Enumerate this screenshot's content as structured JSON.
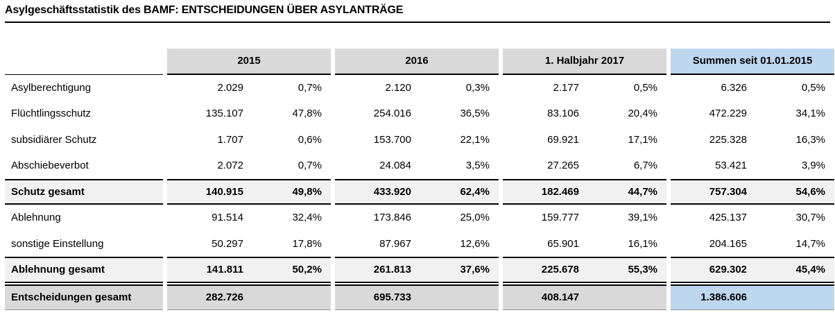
{
  "title": "Asylgeschäftsstatistik des BAMF: ENTSCHEIDUNGEN ÜBER ASYLANTRÄGE",
  "colors": {
    "header_gray": "#d9d9d9",
    "summen_blue": "#bdd7ee",
    "subtotal_gray": "#f1f1f1",
    "total_gray": "#d9d9d9",
    "border": "#000000"
  },
  "table": {
    "column_groups": [
      "2015",
      "2016",
      "1. Halbjahr 2017",
      "Summen seit 01.01.2015"
    ],
    "rows": [
      {
        "label": "Asylberechtigung",
        "cells": [
          [
            "2.029",
            "0,7%"
          ],
          [
            "2.120",
            "0,3%"
          ],
          [
            "2.177",
            "0,5%"
          ],
          [
            "6.326",
            "0,5%"
          ]
        ]
      },
      {
        "label": "Flüchtlingsschutz",
        "cells": [
          [
            "135.107",
            "47,8%"
          ],
          [
            "254.016",
            "36,5%"
          ],
          [
            "83.106",
            "20,4%"
          ],
          [
            "472.229",
            "34,1%"
          ]
        ]
      },
      {
        "label": "subsidiärer Schutz",
        "cells": [
          [
            "1.707",
            "0,6%"
          ],
          [
            "153.700",
            "22,1%"
          ],
          [
            "69.921",
            "17,1%"
          ],
          [
            "225.328",
            "16,3%"
          ]
        ]
      },
      {
        "label": "Abschiebeverbot",
        "cells": [
          [
            "2.072",
            "0,7%"
          ],
          [
            "24.084",
            "3,5%"
          ],
          [
            "27.265",
            "6,7%"
          ],
          [
            "53.421",
            "3,9%"
          ]
        ]
      },
      {
        "label": "Schutz gesamt",
        "cells": [
          [
            "140.915",
            "49,8%"
          ],
          [
            "433.920",
            "62,4%"
          ],
          [
            "182.469",
            "44,7%"
          ],
          [
            "757.304",
            "54,6%"
          ]
        ]
      },
      {
        "label": "Ablehnung",
        "cells": [
          [
            "91.514",
            "32,4%"
          ],
          [
            "173.846",
            "25,0%"
          ],
          [
            "159.777",
            "39,1%"
          ],
          [
            "425.137",
            "30,7%"
          ]
        ]
      },
      {
        "label": "sonstige Einstellung",
        "cells": [
          [
            "50.297",
            "17,8%"
          ],
          [
            "87.967",
            "12,6%"
          ],
          [
            "65.901",
            "16,1%"
          ],
          [
            "204.165",
            "14,7%"
          ]
        ]
      },
      {
        "label": "Ablehnung gesamt",
        "cells": [
          [
            "141.811",
            "50,2%"
          ],
          [
            "261.813",
            "37,6%"
          ],
          [
            "225.678",
            "55,3%"
          ],
          [
            "629.302",
            "45,4%"
          ]
        ]
      },
      {
        "label": "Entscheidungen gesamt",
        "cells": [
          [
            "282.726",
            ""
          ],
          [
            "695.733",
            ""
          ],
          [
            "408.147",
            ""
          ],
          [
            "1.386.606",
            ""
          ]
        ]
      }
    ]
  }
}
